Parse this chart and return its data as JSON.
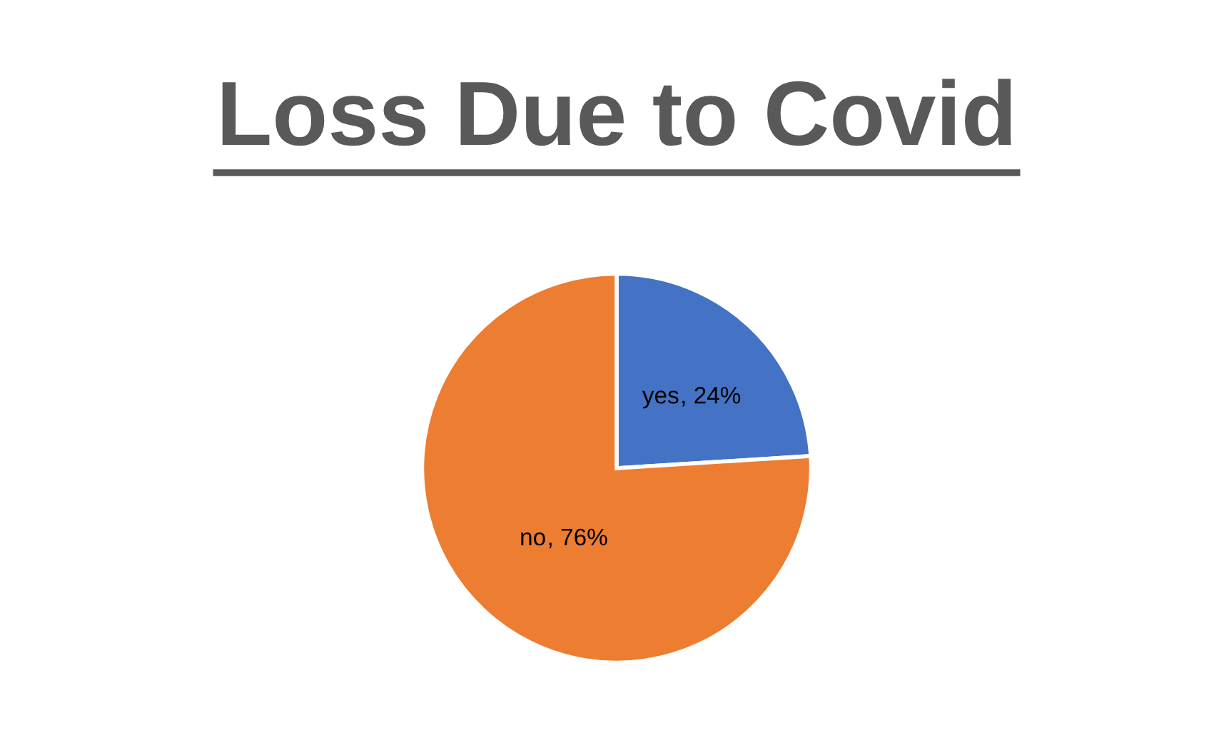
{
  "chart_data": {
    "type": "pie",
    "title": "Loss Due to Covid",
    "categories": [
      "yes",
      "no"
    ],
    "values": [
      24,
      76
    ],
    "colors": [
      "#4472c4",
      "#ed7d31"
    ],
    "value_labels": [
      ", 24%",
      ", 76%"
    ],
    "legend": false
  }
}
